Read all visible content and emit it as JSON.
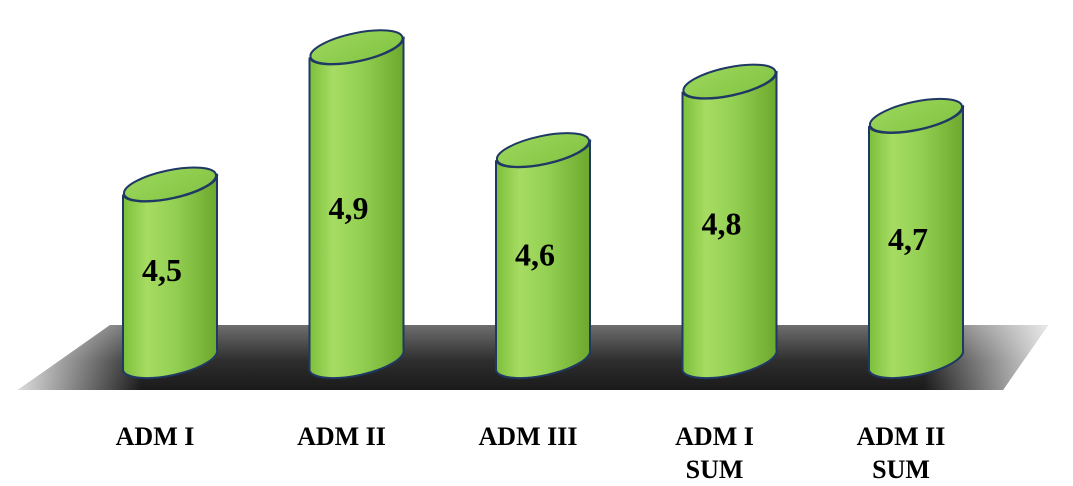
{
  "chart_data": {
    "type": "bar",
    "style": "3d-cylinder",
    "categories": [
      [
        "ADM I"
      ],
      [
        "ADM II"
      ],
      [
        "ADM III"
      ],
      [
        "ADM I",
        "SUM"
      ],
      [
        "ADM II",
        "SUM"
      ]
    ],
    "values": [
      4.5,
      4.9,
      4.6,
      4.8,
      4.7
    ],
    "value_labels": [
      "4,5",
      "4,9",
      "4,6",
      "4,8",
      "4,7"
    ],
    "title": "",
    "xlabel": "",
    "ylabel": "",
    "ylim": [
      4.25,
      4.95
    ],
    "grid": false,
    "legend": "none",
    "colors": {
      "bar_fill": "#92d050",
      "bar_fill_light": "#b4e37a",
      "bar_fill_dark": "#6fae2e",
      "bar_outline": "#1f3864",
      "floor": "#3a3a3a"
    }
  }
}
